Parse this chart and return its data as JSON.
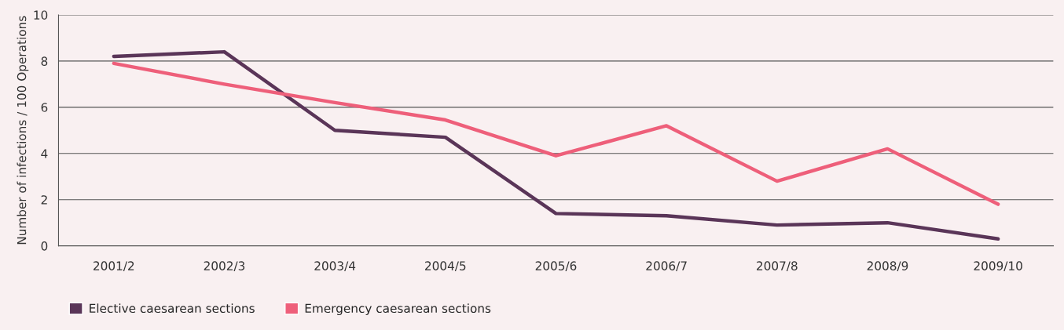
{
  "chart_data": {
    "type": "line",
    "ylabel": "Number of infections / 100 Operations",
    "categories": [
      "2001/2",
      "2002/3",
      "2003/4",
      "2004/5",
      "2005/6",
      "2006/7",
      "2007/8",
      "2008/9",
      "2009/10"
    ],
    "series": [
      {
        "name": "Elective caesarean sections",
        "color": "#5a3558",
        "values": [
          8.2,
          8.4,
          5.0,
          4.7,
          1.4,
          1.3,
          0.9,
          1.0,
          0.3
        ]
      },
      {
        "name": "Emergency caesarean sections",
        "color": "#ee5f7a",
        "values": [
          7.9,
          7.0,
          6.2,
          5.45,
          3.9,
          5.2,
          2.8,
          4.2,
          1.8
        ]
      }
    ],
    "ylim": [
      0,
      10
    ],
    "yticks": [
      0,
      2,
      4,
      6,
      8,
      10
    ],
    "grid": "y",
    "legend": "bottom left",
    "marker": "none",
    "line_style": "solid"
  }
}
